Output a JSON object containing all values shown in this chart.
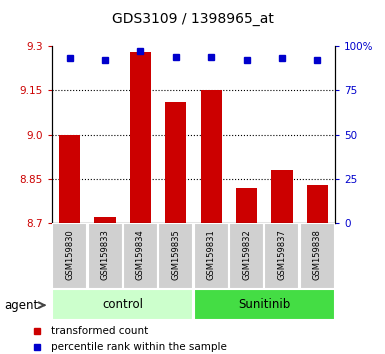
{
  "title": "GDS3109 / 1398965_at",
  "samples": [
    "GSM159830",
    "GSM159833",
    "GSM159834",
    "GSM159835",
    "GSM159831",
    "GSM159832",
    "GSM159837",
    "GSM159838"
  ],
  "bar_values": [
    9.0,
    8.72,
    9.28,
    9.11,
    9.15,
    8.82,
    8.88,
    8.83
  ],
  "percentile_values": [
    93,
    92,
    97,
    94,
    94,
    92,
    93,
    92
  ],
  "groups": [
    {
      "label": "control",
      "indices": [
        0,
        1,
        2,
        3
      ],
      "color": "#ccffcc"
    },
    {
      "label": "Sunitinib",
      "indices": [
        4,
        5,
        6,
        7
      ],
      "color": "#44dd44"
    }
  ],
  "ylim": [
    8.7,
    9.3
  ],
  "yticks_left": [
    8.7,
    8.85,
    9.0,
    9.15,
    9.3
  ],
  "yticks_right": [
    0,
    25,
    50,
    75,
    100
  ],
  "bar_color": "#cc0000",
  "dot_color": "#0000cc",
  "bar_width": 0.6,
  "background_color": "#ffffff",
  "plot_bg_color": "#ffffff",
  "legend_items": [
    "transformed count",
    "percentile rank within the sample"
  ]
}
